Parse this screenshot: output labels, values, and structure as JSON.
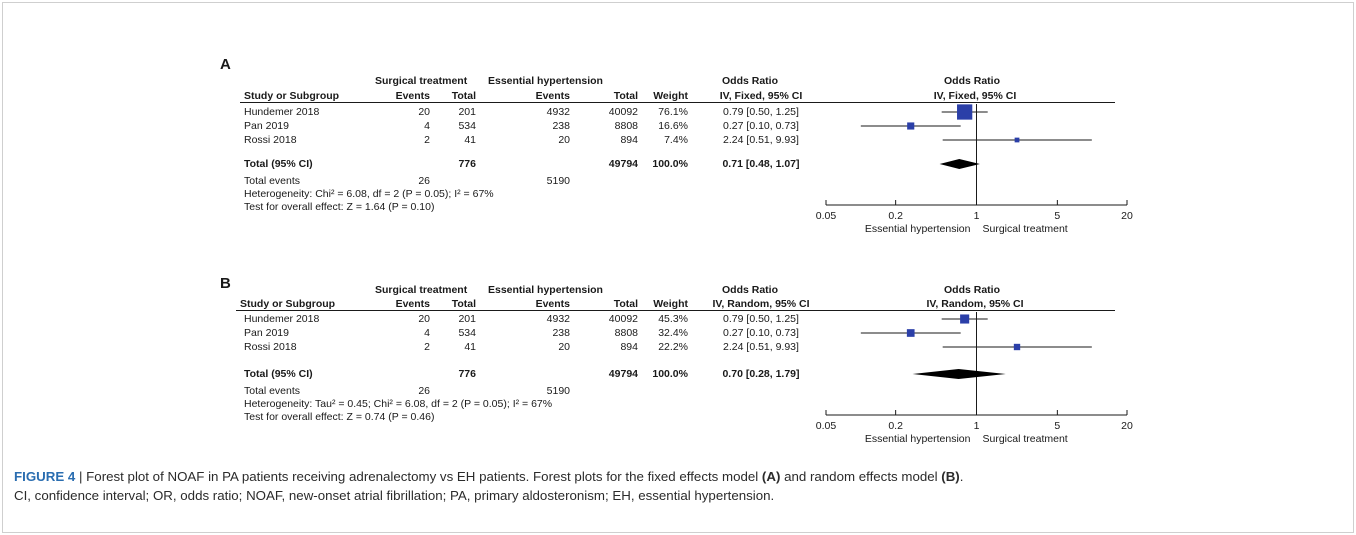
{
  "chart_data": [
    {
      "type": "forest",
      "panel_label": "A",
      "group_headers": {
        "surgical": "Surgical treatment",
        "essential": "Essential hypertension",
        "or_text": "Odds Ratio",
        "or_plot": "Odds Ratio"
      },
      "columns": {
        "study": "Study or Subgroup",
        "events1": "Events",
        "total1": "Total",
        "events2": "Events",
        "total2": "Total",
        "weight": "Weight",
        "method": "IV, Fixed, 95% CI",
        "method_plot": "IV, Fixed, 95% CI"
      },
      "studies": [
        {
          "name": "Hundemer 2018",
          "events1": "20",
          "total1": "201",
          "events2": "4932",
          "total2": "40092",
          "weight": "76.1%",
          "ci_text": "0.79 [0.50, 1.25]",
          "or": 0.79,
          "lo": 0.5,
          "hi": 1.25,
          "w": 76.1
        },
        {
          "name": "Pan 2019",
          "events1": "4",
          "total1": "534",
          "events2": "238",
          "total2": "8808",
          "weight": "16.6%",
          "ci_text": "0.27 [0.10, 0.73]",
          "or": 0.27,
          "lo": 0.1,
          "hi": 0.73,
          "w": 16.6
        },
        {
          "name": "Rossi 2018",
          "events1": "2",
          "total1": "41",
          "events2": "20",
          "total2": "894",
          "weight": "7.4%",
          "ci_text": "2.24 [0.51, 9.93]",
          "or": 2.24,
          "lo": 0.51,
          "hi": 9.93,
          "w": 7.4
        }
      ],
      "total": {
        "label": "Total (95% CI)",
        "total1": "776",
        "total2": "49794",
        "weight": "100.0%",
        "ci_text": "0.71 [0.48, 1.07]",
        "or": 0.71,
        "lo": 0.48,
        "hi": 1.07
      },
      "events_row": {
        "label": "Total events",
        "events1": "26",
        "events2": "5190"
      },
      "heterogeneity": "Heterogeneity: Chi² = 6.08, df = 2 (P = 0.05); I² = 67%",
      "overall": "Test for overall effect: Z = 1.64 (P = 0.10)",
      "axis": {
        "scale": "log",
        "ticks": [
          0.05,
          0.2,
          1,
          5,
          20
        ],
        "tick_labels": [
          "0.05",
          "0.2",
          "1",
          "5",
          "20"
        ],
        "favours_left": "Essential hypertension",
        "favours_right": "Surgical treatment"
      },
      "colors": {
        "marker": "#2b3fa8",
        "diamond": "#000000"
      }
    },
    {
      "type": "forest",
      "panel_label": "B",
      "group_headers": {
        "surgical": "Surgical treatment",
        "essential": "Essential hypertension",
        "or_text": "Odds Ratio",
        "or_plot": "Odds Ratio"
      },
      "columns": {
        "study": "Study or Subgroup",
        "events1": "Events",
        "total1": "Total",
        "events2": "Events",
        "total2": "Total",
        "weight": "Weight",
        "method": "IV, Random, 95% CI",
        "method_plot": "IV, Random, 95% CI"
      },
      "studies": [
        {
          "name": "Hundemer 2018",
          "events1": "20",
          "total1": "201",
          "events2": "4932",
          "total2": "40092",
          "weight": "45.3%",
          "ci_text": "0.79 [0.50, 1.25]",
          "or": 0.79,
          "lo": 0.5,
          "hi": 1.25,
          "w": 45.3
        },
        {
          "name": "Pan 2019",
          "events1": "4",
          "total1": "534",
          "events2": "238",
          "total2": "8808",
          "weight": "32.4%",
          "ci_text": "0.27 [0.10, 0.73]",
          "or": 0.27,
          "lo": 0.1,
          "hi": 0.73,
          "w": 32.4
        },
        {
          "name": "Rossi 2018",
          "events1": "2",
          "total1": "41",
          "events2": "20",
          "total2": "894",
          "weight": "22.2%",
          "ci_text": "2.24 [0.51, 9.93]",
          "or": 2.24,
          "lo": 0.51,
          "hi": 9.93,
          "w": 22.2
        }
      ],
      "total": {
        "label": "Total (95% CI)",
        "total1": "776",
        "total2": "49794",
        "weight": "100.0%",
        "ci_text": "0.70 [0.28, 1.79]",
        "or": 0.7,
        "lo": 0.28,
        "hi": 1.79
      },
      "events_row": {
        "label": "Total events",
        "events1": "26",
        "events2": "5190"
      },
      "heterogeneity": "Heterogeneity: Tau² = 0.45; Chi² = 6.08, df = 2 (P = 0.05); I² = 67%",
      "overall": "Test for overall effect: Z = 0.74 (P = 0.46)",
      "axis": {
        "scale": "log",
        "ticks": [
          0.05,
          0.2,
          1,
          5,
          20
        ],
        "tick_labels": [
          "0.05",
          "0.2",
          "1",
          "5",
          "20"
        ],
        "favours_left": "Essential hypertension",
        "favours_right": "Surgical treatment"
      },
      "colors": {
        "marker": "#2b3fa8",
        "diamond": "#000000"
      }
    }
  ],
  "caption": {
    "fig": "FIGURE 4",
    "sep": " | ",
    "part1": "Forest plot of NOAF in PA patients receiving adrenalectomy vs EH patients. Forest plots for the fixed effects model ",
    "a": "(A)",
    "part2": " and random effects model ",
    "b": "(B)",
    "part3": ".",
    "line2": "CI, confidence interval; OR, odds ratio; NOAF, new-onset atrial fibrillation; PA, primary aldosteronism; EH, essential hypertension."
  }
}
